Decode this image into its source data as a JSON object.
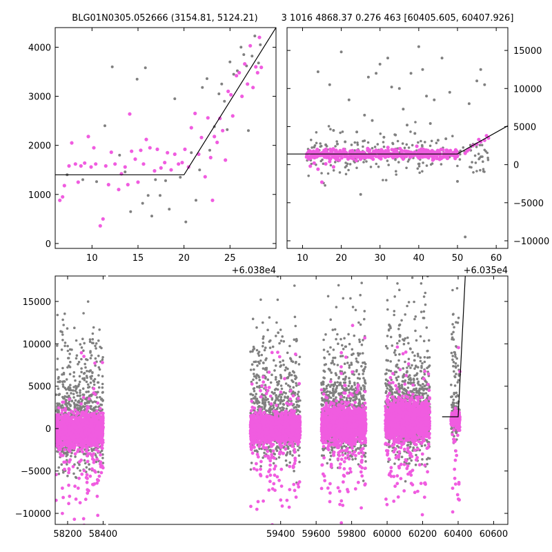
{
  "titles": {
    "left": "BLG01N0305.052666 (3154.81, 5124.21)",
    "right": "3 1016 4868.37 0.276 463 [60405.605, 60407.926]"
  },
  "colors": {
    "points_grey": "#808080",
    "points_pink": "#f05ce0",
    "fit": "#000000"
  },
  "chart_data": [
    {
      "id": "top-left",
      "type": "scatter",
      "xlim": [
        6,
        30
      ],
      "ylim": [
        -100,
        4400
      ],
      "x_offset_label": "+6.038e4",
      "xticks": [
        10,
        15,
        20,
        25
      ],
      "yticks": [
        0,
        1000,
        2000,
        3000,
        4000
      ],
      "fit_line": {
        "x": [
          6,
          20,
          30
        ],
        "y": [
          1400,
          1400,
          4400
        ]
      },
      "pink_points": [
        [
          6.5,
          880
        ],
        [
          6.8,
          950
        ],
        [
          7.0,
          1180
        ],
        [
          7.5,
          1580
        ],
        [
          7.8,
          2050
        ],
        [
          8.2,
          1620
        ],
        [
          8.5,
          1250
        ],
        [
          8.8,
          1580
        ],
        [
          9.2,
          1640
        ],
        [
          9.6,
          2180
        ],
        [
          9.9,
          1560
        ],
        [
          10.2,
          1950
        ],
        [
          10.4,
          1620
        ],
        [
          10.9,
          360
        ],
        [
          11.2,
          500
        ],
        [
          11.5,
          1580
        ],
        [
          11.8,
          1200
        ],
        [
          12.1,
          1860
        ],
        [
          12.5,
          1620
        ],
        [
          12.9,
          1100
        ],
        [
          13.2,
          1420
        ],
        [
          13.6,
          1560
        ],
        [
          13.9,
          1200
        ],
        [
          14.1,
          2640
        ],
        [
          14.3,
          1880
        ],
        [
          14.7,
          1720
        ],
        [
          15.0,
          1250
        ],
        [
          15.3,
          1900
        ],
        [
          15.6,
          1620
        ],
        [
          15.9,
          2120
        ],
        [
          16.3,
          1950
        ],
        [
          16.8,
          1480
        ],
        [
          17.1,
          1920
        ],
        [
          17.5,
          1540
        ],
        [
          17.9,
          1650
        ],
        [
          18.2,
          1850
        ],
        [
          18.6,
          1500
        ],
        [
          19.0,
          1820
        ],
        [
          19.4,
          1620
        ],
        [
          19.8,
          1650
        ],
        [
          20.1,
          1920
        ],
        [
          20.5,
          1560
        ],
        [
          20.8,
          2360
        ],
        [
          21.2,
          2650
        ],
        [
          21.6,
          1820
        ],
        [
          21.9,
          2160
        ],
        [
          22.3,
          1360
        ],
        [
          22.6,
          2560
        ],
        [
          22.9,
          1750
        ],
        [
          23.1,
          880
        ],
        [
          23.3,
          2180
        ],
        [
          23.6,
          2060
        ],
        [
          23.9,
          2550
        ],
        [
          24.2,
          2300
        ],
        [
          24.5,
          1700
        ],
        [
          24.8,
          3100
        ],
        [
          25.1,
          3030
        ],
        [
          25.3,
          2600
        ],
        [
          25.7,
          3420
        ],
        [
          26.0,
          3480
        ],
        [
          26.3,
          3000
        ],
        [
          26.6,
          3660
        ],
        [
          26.9,
          3250
        ],
        [
          27.2,
          4030
        ],
        [
          27.5,
          3180
        ],
        [
          27.8,
          3600
        ],
        [
          28.0,
          3480
        ],
        [
          28.2,
          4200
        ],
        [
          28.4,
          3590
        ]
      ],
      "grey_points": [
        [
          7.3,
          1400
        ],
        [
          9.0,
          1300
        ],
        [
          10.5,
          1260
        ],
        [
          11.4,
          2400
        ],
        [
          12.2,
          3600
        ],
        [
          13.0,
          1800
        ],
        [
          13.6,
          1460
        ],
        [
          14.2,
          650
        ],
        [
          14.9,
          3350
        ],
        [
          15.5,
          820
        ],
        [
          15.8,
          3580
        ],
        [
          16.1,
          980
        ],
        [
          16.5,
          560
        ],
        [
          16.9,
          1300
        ],
        [
          17.4,
          980
        ],
        [
          18.0,
          1280
        ],
        [
          18.4,
          700
        ],
        [
          19.0,
          2950
        ],
        [
          19.6,
          1350
        ],
        [
          20.2,
          440
        ],
        [
          20.8,
          1850
        ],
        [
          21.3,
          880
        ],
        [
          21.7,
          1500
        ],
        [
          22.0,
          3180
        ],
        [
          22.5,
          3360
        ],
        [
          22.8,
          1900
        ],
        [
          23.3,
          2380
        ],
        [
          23.8,
          3050
        ],
        [
          24.1,
          3250
        ],
        [
          24.4,
          2900
        ],
        [
          24.7,
          2320
        ],
        [
          25.0,
          3700
        ],
        [
          25.4,
          3450
        ],
        [
          25.8,
          3520
        ],
        [
          26.2,
          4000
        ],
        [
          26.5,
          3850
        ],
        [
          26.8,
          3620
        ],
        [
          27.0,
          2300
        ],
        [
          27.4,
          3820
        ],
        [
          27.7,
          4230
        ],
        [
          28.1,
          3680
        ],
        [
          28.3,
          4050
        ]
      ]
    },
    {
      "id": "top-right",
      "type": "scatter",
      "xlim": [
        6,
        63
      ],
      "ylim": [
        -11000,
        18000
      ],
      "x_offset_label": "+6.035e4",
      "xticks": [
        10,
        20,
        30,
        40,
        50,
        60
      ],
      "yticks": [
        -10000,
        -5000,
        0,
        5000,
        10000,
        15000
      ],
      "fit_line": {
        "x": [
          6,
          50,
          63
        ],
        "y": [
          1400,
          1400,
          5100
        ]
      },
      "pink_band": {
        "x_start": 11,
        "x_end": 50,
        "center": 1400,
        "spread": 700
      },
      "pink_points": [
        [
          12,
          -200
        ],
        [
          13,
          200
        ],
        [
          14,
          -600
        ],
        [
          15,
          -2300
        ],
        [
          16,
          100
        ],
        [
          17,
          400
        ],
        [
          18,
          -300
        ],
        [
          52,
          1500
        ],
        [
          53,
          2000
        ],
        [
          54,
          2500
        ],
        [
          55,
          2700
        ],
        [
          56,
          3000
        ],
        [
          57,
          3200
        ],
        [
          58,
          3500
        ],
        [
          52.5,
          1800
        ],
        [
          55.5,
          3300
        ],
        [
          57.5,
          3800
        ]
      ],
      "grey_points": [
        [
          14,
          12200
        ],
        [
          17,
          10500
        ],
        [
          18,
          4500
        ],
        [
          20,
          14800
        ],
        [
          22,
          8500
        ],
        [
          25,
          -3900
        ],
        [
          26,
          6500
        ],
        [
          27,
          11500
        ],
        [
          29,
          12000
        ],
        [
          30,
          13200
        ],
        [
          32,
          14000
        ],
        [
          33,
          10200
        ],
        [
          35,
          10000
        ],
        [
          36,
          7300
        ],
        [
          37,
          5200
        ],
        [
          38,
          12000
        ],
        [
          40,
          15500
        ],
        [
          41,
          12500
        ],
        [
          42,
          9000
        ],
        [
          44,
          8500
        ],
        [
          46,
          14000
        ],
        [
          48,
          9500
        ],
        [
          50,
          -2200
        ],
        [
          52,
          -9500
        ],
        [
          53,
          8000
        ],
        [
          55,
          11000
        ],
        [
          56,
          12500
        ],
        [
          57,
          10500
        ],
        [
          43,
          5400
        ],
        [
          28,
          5800
        ],
        [
          31,
          3600
        ],
        [
          34,
          3900
        ],
        [
          39,
          4100
        ],
        [
          45,
          3200
        ],
        [
          47,
          3400
        ],
        [
          24,
          4300
        ],
        [
          21,
          3000
        ],
        [
          19,
          2700
        ],
        [
          16,
          2600
        ],
        [
          13,
          2300
        ]
      ]
    },
    {
      "id": "bottom",
      "type": "scatter",
      "xlim": [
        58130,
        60680
      ],
      "ylim": [
        -11300,
        18000
      ],
      "x_offset_label": "",
      "xticks": [
        58200,
        58400,
        59400,
        59600,
        59800,
        60000,
        60200,
        60400,
        60600
      ],
      "yticks": [
        -10000,
        -5000,
        0,
        5000,
        10000,
        15000
      ],
      "break_position_x": 58420,
      "fit_line": {
        "x": [
          60310,
          60400,
          60440
        ],
        "y": [
          1400,
          1400,
          18000
        ]
      },
      "seasons": [
        {
          "x_start": 58135,
          "x_end": 58400,
          "center": -200,
          "spread": 1600
        },
        {
          "x_start": 59230,
          "x_end": 59510,
          "center": 0,
          "spread": 1400
        },
        {
          "x_start": 59630,
          "x_end": 59880,
          "center": 500,
          "spread": 1700
        },
        {
          "x_start": 59990,
          "x_end": 60240,
          "center": 1000,
          "spread": 1900
        },
        {
          "x_start": 60360,
          "x_end": 60410,
          "center": 1200,
          "spread": 900
        }
      ]
    }
  ]
}
